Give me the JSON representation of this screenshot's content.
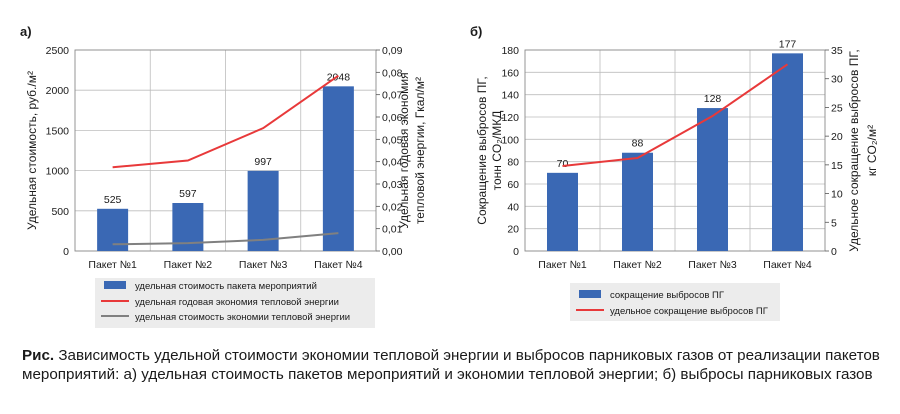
{
  "chart_data": [
    {
      "panel_label": "а)",
      "type": "bar",
      "categories": [
        "Пакет №1",
        "Пакет №2",
        "Пакет №3",
        "Пакет №4"
      ],
      "ylabel": "Удельная стоимость, руб./м²",
      "y2label_line1": "Удельная годовая экономия",
      "y2label_line2": "тепловой энергии, Гкал/м²",
      "ylim": [
        0,
        2500
      ],
      "yticks": [
        "0",
        "500",
        "1000",
        "1500",
        "2000",
        "2500"
      ],
      "y2lim": [
        0,
        0.09
      ],
      "y2ticks": [
        "0,00",
        "0,01",
        "0,02",
        "0,03",
        "0,04",
        "0,05",
        "0,06",
        "0,07",
        "0,08",
        "0,09"
      ],
      "grid": true,
      "series": [
        {
          "name": "удельная стоимость пакета мероприятий",
          "kind": "bar",
          "axis": "left",
          "color": "#3a68b4",
          "values": [
            525,
            597,
            997,
            2048
          ],
          "labels": [
            "525",
            "597",
            "997",
            "2048"
          ]
        },
        {
          "name": "удельная годовая экономия тепловой энергии",
          "kind": "line",
          "axis": "right",
          "color": "#e8393a",
          "values": [
            0.0375,
            0.0405,
            0.055,
            0.0785
          ]
        },
        {
          "name": "удельная стоимость экономии тепловой энергии",
          "kind": "line",
          "axis": "right",
          "color": "#808080",
          "values": [
            0.003,
            0.0035,
            0.005,
            0.008
          ]
        }
      ],
      "legend": "bottom"
    },
    {
      "panel_label": "б)",
      "type": "bar",
      "categories": [
        "Пакет №1",
        "Пакет №2",
        "Пакет №3",
        "Пакет №4"
      ],
      "ylabel_line1": "Сокращение выбросов ПГ,",
      "ylabel_line2": "тонн CO₂/МКД",
      "y2label_line1": "Удельное сокращение выбросов ПГ,",
      "y2label_line2": "кг CO₂/м²",
      "ylim": [
        0,
        180
      ],
      "yticks": [
        "0",
        "20",
        "40",
        "60",
        "80",
        "100",
        "120",
        "140",
        "160",
        "180"
      ],
      "y2lim": [
        0,
        35
      ],
      "y2ticks": [
        "0",
        "5",
        "10",
        "15",
        "20",
        "25",
        "30",
        "35"
      ],
      "grid": true,
      "series": [
        {
          "name": "сокращение выбросов ПГ",
          "kind": "bar",
          "axis": "left",
          "color": "#3a68b4",
          "values": [
            70,
            88,
            128,
            177
          ],
          "labels": [
            "70",
            "88",
            "128",
            "177"
          ]
        },
        {
          "name": "удельное сокращение выбросов ПГ",
          "kind": "line",
          "axis": "right",
          "color": "#e8393a",
          "values": [
            14.8,
            16.2,
            23.5,
            32.5
          ]
        }
      ],
      "legend": "bottom"
    }
  ],
  "caption": {
    "prefix": "Рис.",
    "text": " Зависимость удельной стоимости экономии тепловой энергии и выбросов парниковых газов от реализации пакетов мероприятий: а) удельная стоимость пакетов мероприятий и экономии тепловой энергии; б) выбросы парниковых газов"
  }
}
